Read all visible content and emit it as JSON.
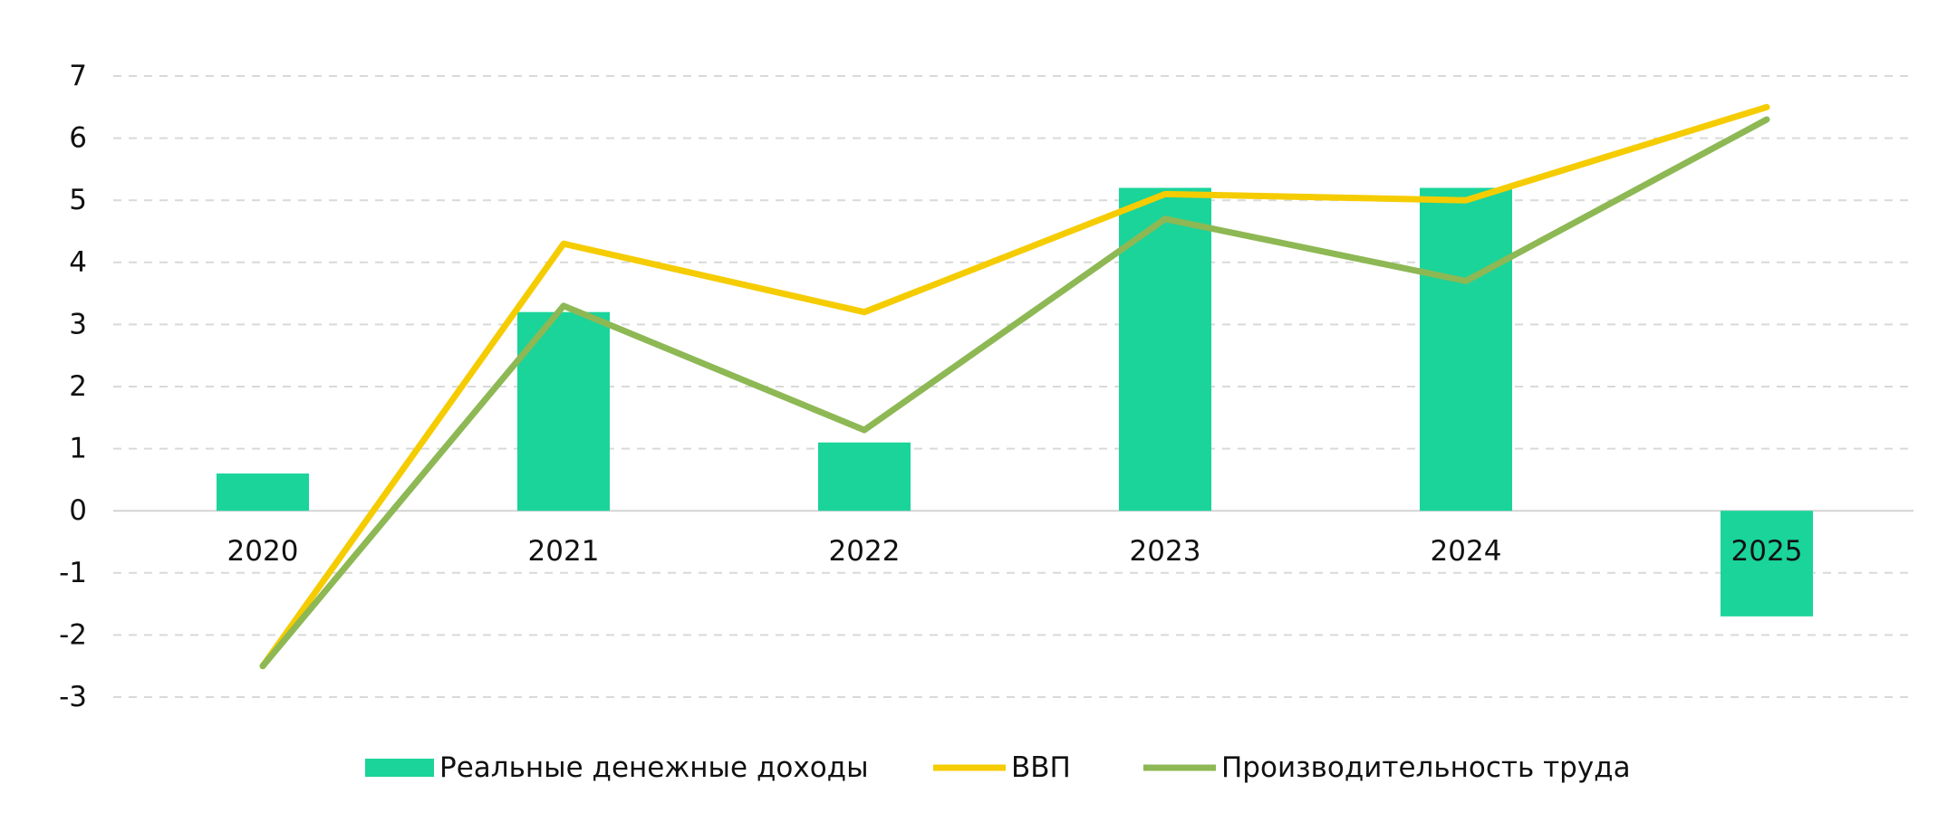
{
  "chart_data": {
    "type": "bar",
    "categories": [
      "2020",
      "2021",
      "2022",
      "2023",
      "2024",
      "2025"
    ],
    "ylim": [
      -3,
      7
    ],
    "yticks": [
      "7",
      "6",
      "5",
      "4",
      "3",
      "2",
      "1",
      "0",
      "-1",
      "-2",
      "-3"
    ],
    "grid": true,
    "legend_position": "bottom",
    "series": [
      {
        "name": "Реальные денежные доходы",
        "kind": "bar",
        "color": "#1AD49A",
        "values": [
          0.6,
          3.2,
          1.1,
          5.2,
          5.2,
          -1.7
        ]
      },
      {
        "name": "ВВП",
        "kind": "line",
        "color": "#F5CC00",
        "values": [
          -2.5,
          4.3,
          3.2,
          5.1,
          5.0,
          6.5
        ]
      },
      {
        "name": "Производительность труда",
        "kind": "line",
        "color": "#8DB854",
        "values": [
          -2.5,
          3.3,
          1.3,
          4.7,
          3.7,
          6.3
        ]
      }
    ],
    "title": "",
    "xlabel": "",
    "ylabel": ""
  }
}
